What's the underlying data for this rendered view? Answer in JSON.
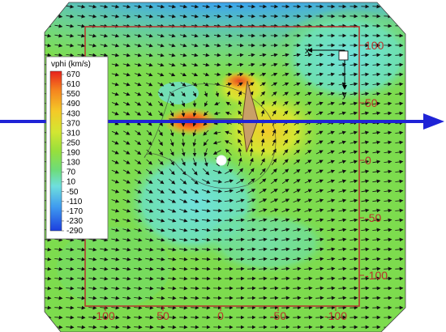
{
  "legend": {
    "title": "vphi (km/s)",
    "levels": [
      "670",
      "610",
      "550",
      "490",
      "430",
      "370",
      "310",
      "250",
      "190",
      "130",
      "70",
      "10",
      "-50",
      "-110",
      "-170",
      "-230",
      "-290"
    ],
    "colors": [
      "#e8221c",
      "#f04d1e",
      "#f5851f",
      "#f6aa22",
      "#f4c928",
      "#eadf2c",
      "#d3e632",
      "#b5e336",
      "#97df3c",
      "#7cdb4a",
      "#6ddc7b",
      "#6fe0b5",
      "#6fdfdd",
      "#5ec7ee",
      "#3f9bef",
      "#2a6ee8",
      "#1c3fdf"
    ]
  },
  "right_axis": {
    "labels": [
      "100",
      "50",
      "0",
      "-50",
      "-100"
    ]
  },
  "bottom_axis": {
    "labels": [
      "100",
      "50",
      "0",
      "-50",
      "-100"
    ]
  },
  "inset_axes": {
    "x_label": "x",
    "y_label": "y"
  },
  "colors": {
    "frame": "#b8322c",
    "beam": "#1f23d6",
    "background_field": "#7ddc4e",
    "marker": "#ffffff"
  }
}
